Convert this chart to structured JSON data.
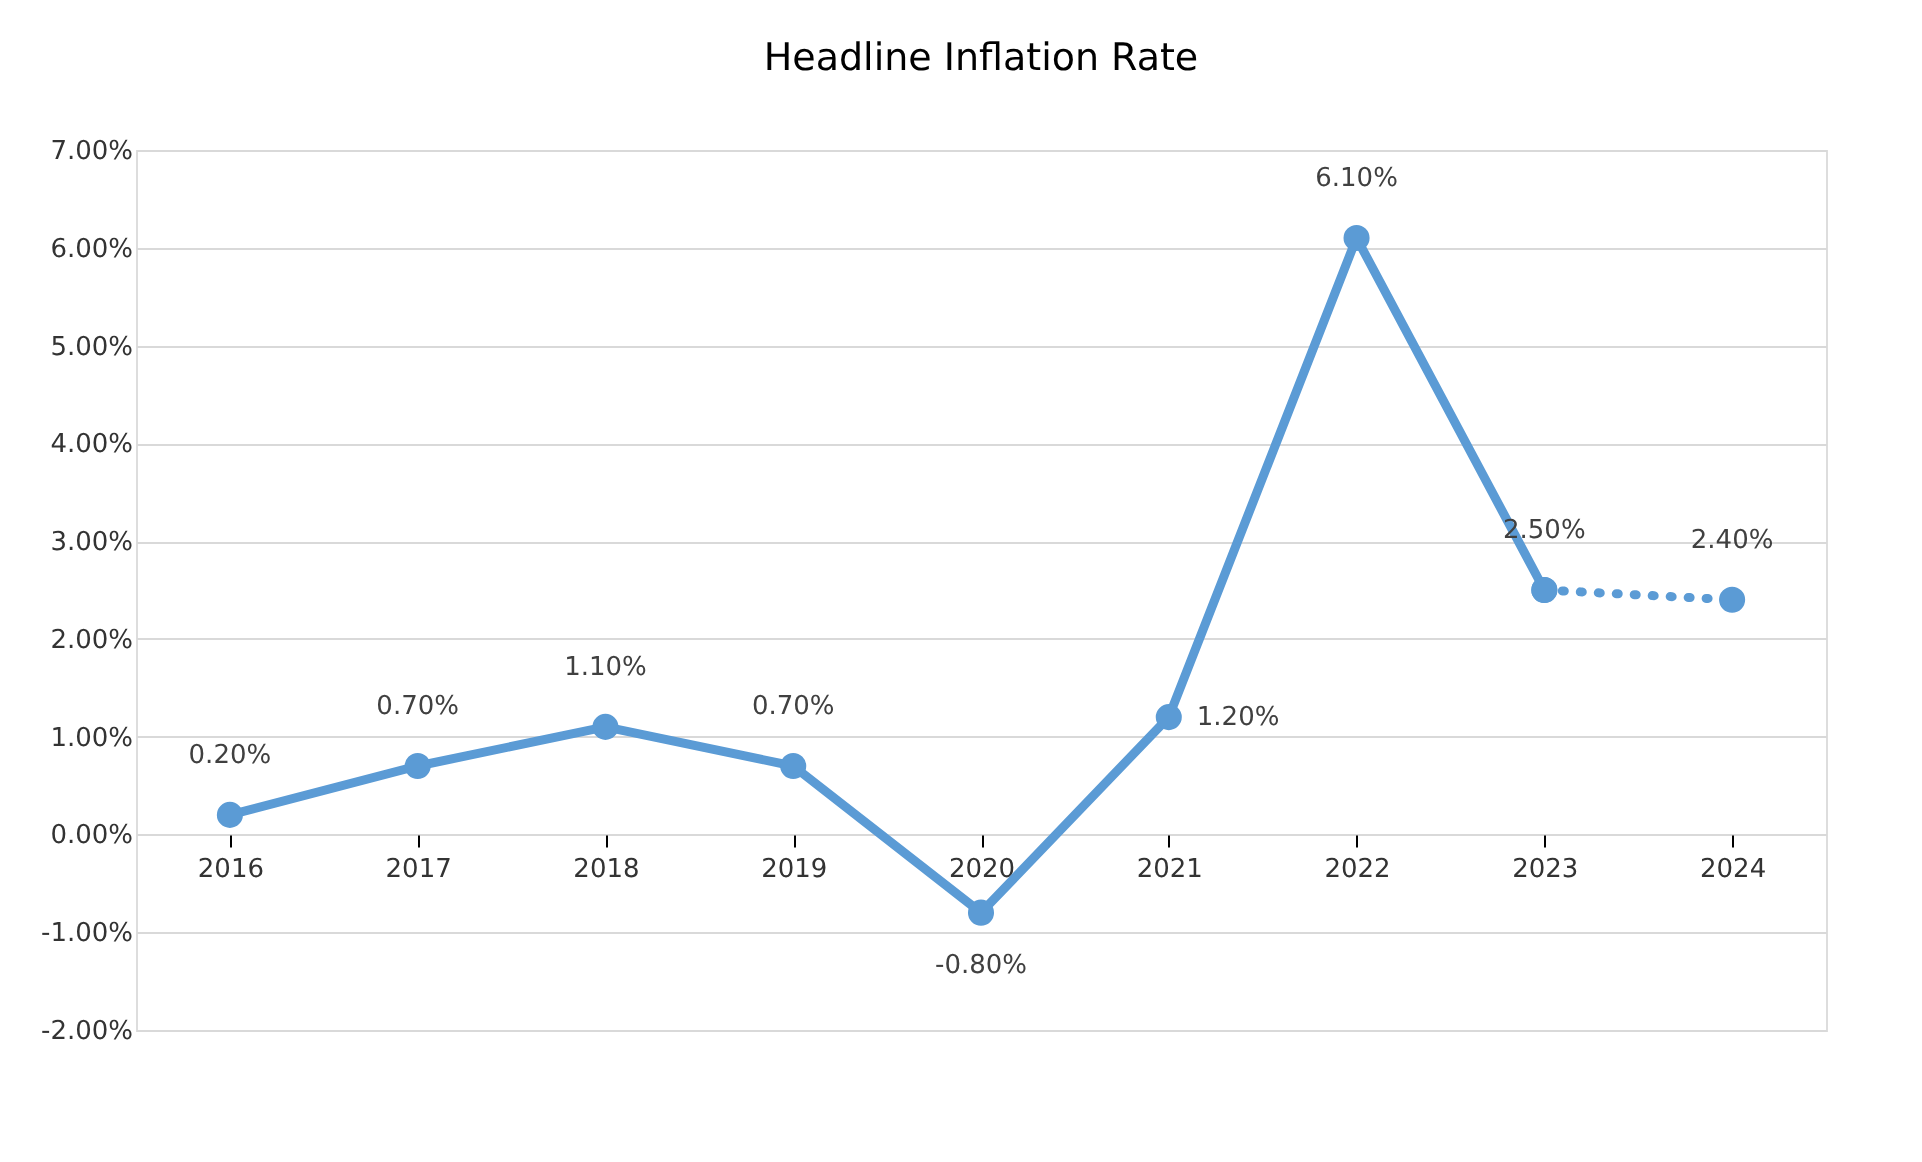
{
  "chart_data": {
    "type": "line",
    "title": "Headline Inflation Rate",
    "categories": [
      "2016",
      "2017",
      "2018",
      "2019",
      "2020",
      "2021",
      "2022",
      "2023",
      "2024"
    ],
    "series": [
      {
        "color": "#5b9bd5",
        "line_style": "solid",
        "values": [
          0.2,
          0.7,
          1.1,
          0.7,
          -0.8,
          1.2,
          6.1,
          2.5,
          null
        ],
        "value_labels": [
          "0.20%",
          "0.70%",
          "1.10%",
          "0.70%",
          "-0.80%",
          "1.20%",
          "6.10%",
          "2.50%",
          null
        ]
      },
      {
        "color": "#5b9bd5",
        "line_style": "dotted",
        "values": [
          null,
          null,
          null,
          null,
          null,
          null,
          null,
          2.5,
          2.4
        ],
        "value_labels": [
          null,
          null,
          null,
          null,
          null,
          null,
          null,
          null,
          "2.40%"
        ]
      }
    ],
    "ylim": [
      -2,
      7
    ],
    "yticks": [
      {
        "value": -2,
        "label": "-2.00%"
      },
      {
        "value": -1,
        "label": "-1.00%"
      },
      {
        "value": 0,
        "label": "0.00%"
      },
      {
        "value": 1,
        "label": "1.00%"
      },
      {
        "value": 2,
        "label": "2.00%"
      },
      {
        "value": 3,
        "label": "3.00%"
      },
      {
        "value": 4,
        "label": "4.00%"
      },
      {
        "value": 5,
        "label": "5.00%"
      },
      {
        "value": 6,
        "label": "6.00%"
      },
      {
        "value": 7,
        "label": "7.00%"
      }
    ],
    "grid": "y",
    "marker": "circle"
  }
}
